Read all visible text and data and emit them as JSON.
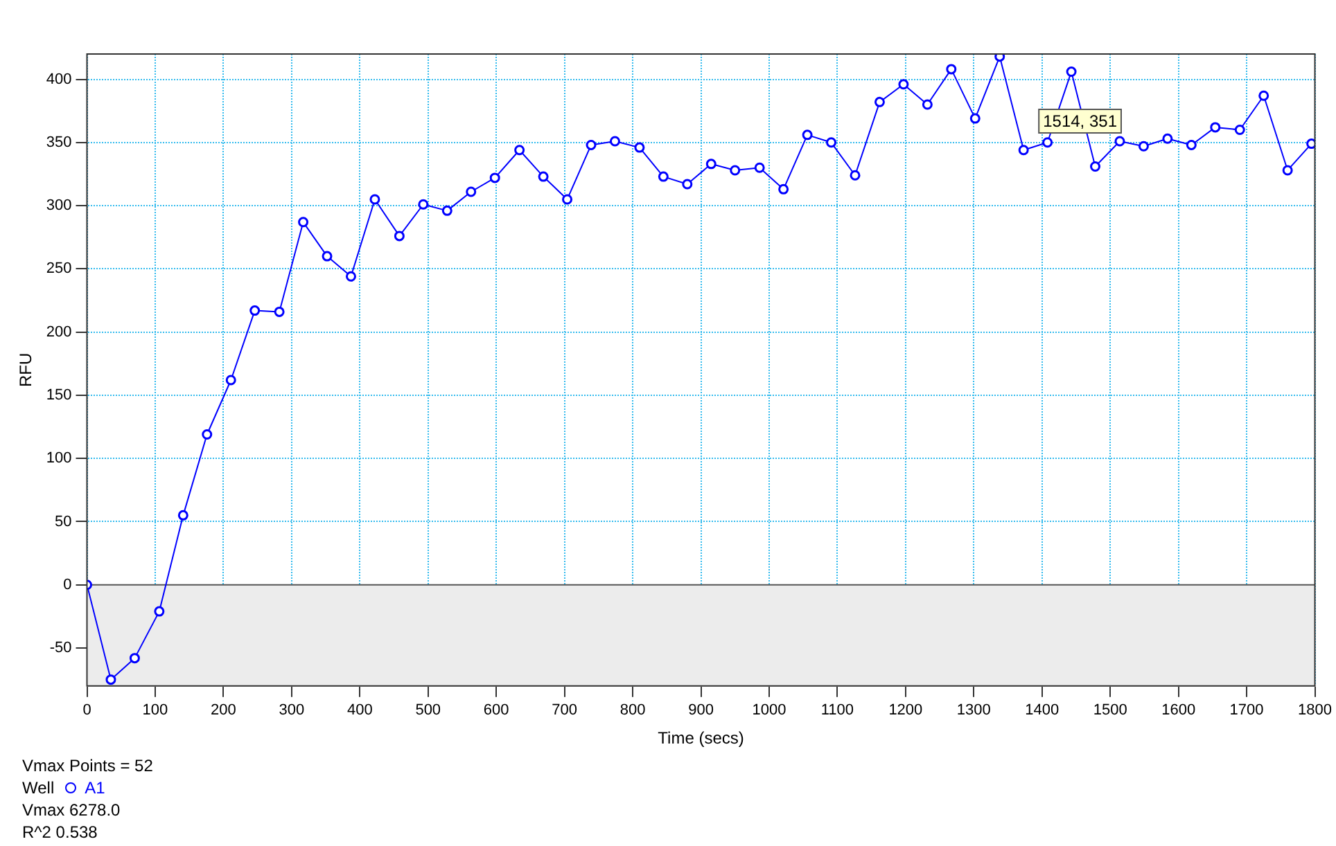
{
  "chart_data": {
    "type": "line",
    "xlabel": "Time (secs)",
    "ylabel": "RFU",
    "legend_title": "Well",
    "x": [
      0,
      35,
      70,
      106,
      141,
      176,
      211,
      246,
      282,
      317,
      352,
      387,
      422,
      458,
      493,
      528,
      563,
      598,
      634,
      669,
      704,
      739,
      774,
      810,
      845,
      880,
      915,
      950,
      986,
      1021,
      1056,
      1091,
      1126,
      1162,
      1197,
      1232,
      1267,
      1302,
      1338,
      1373,
      1408,
      1443,
      1478,
      1514,
      1549,
      1584,
      1619,
      1654,
      1690,
      1725,
      1760,
      1795
    ],
    "series": [
      {
        "name": "A1",
        "color": "#0000ff",
        "values": [
          0,
          -75,
          -58,
          -21,
          55,
          119,
          162,
          217,
          216,
          287,
          260,
          244,
          305,
          276,
          301,
          296,
          311,
          322,
          344,
          323,
          305,
          348,
          351,
          346,
          323,
          317,
          333,
          328,
          330,
          313,
          356,
          350,
          324,
          382,
          396,
          380,
          408,
          369,
          418,
          344,
          350,
          406,
          331,
          351,
          347,
          353,
          348,
          362,
          360,
          387,
          328,
          349
        ]
      }
    ],
    "xlim": [
      0,
      1800
    ],
    "xticks": [
      0,
      100,
      200,
      300,
      400,
      500,
      600,
      700,
      800,
      900,
      1000,
      1100,
      1200,
      1300,
      1400,
      1500,
      1600,
      1700,
      1800
    ],
    "ylim": [
      -80,
      420
    ],
    "yticks": [
      -50,
      0,
      50,
      100,
      150,
      200,
      250,
      300,
      350,
      400
    ],
    "bands": [
      {
        "axis": "y",
        "from": -80,
        "to": 0,
        "color": "#ececec"
      }
    ],
    "grid": true,
    "legend": "bottom left",
    "marker": "circle",
    "line_style": "solid",
    "annotations": [
      "Vmax Points = 52",
      {
        "text": "1514, 351",
        "x": 1514,
        "y": 351
      },
      "Vmax 6278.0",
      "R^2 0.538"
    ]
  }
}
